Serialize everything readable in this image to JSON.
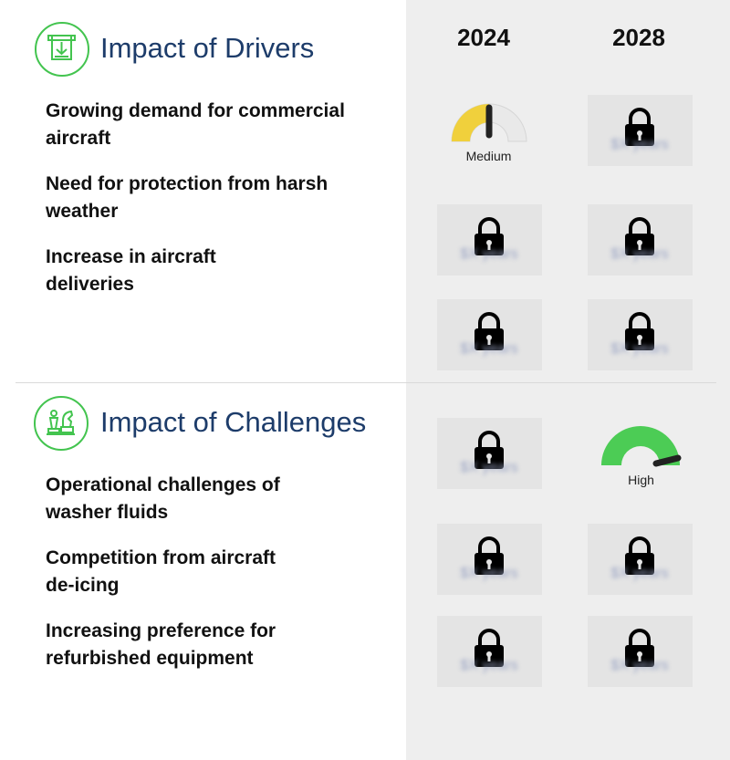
{
  "drivers": {
    "title": "Impact of Drivers",
    "icon": "bill-download-icon",
    "items": [
      {
        "line1": "Growing demand for commercial",
        "line2": "aircraft"
      },
      {
        "line1": "Need for protection from harsh",
        "line2": "weather"
      },
      {
        "line1": "Increase in aircraft",
        "line2": "deliveries"
      }
    ],
    "ratings": [
      {
        "y2024": "Medium",
        "y2028": "locked"
      },
      {
        "y2024": "locked",
        "y2028": "locked"
      },
      {
        "y2024": "locked",
        "y2028": "locked"
      }
    ]
  },
  "challenges": {
    "title": "Impact of Challenges",
    "icon": "chess-pieces-icon",
    "items": [
      {
        "line1": "Operational challenges of",
        "line2": "washer fluids"
      },
      {
        "line1": "Competition from aircraft",
        "line2": "de-icing"
      },
      {
        "line1": "Increasing preference for",
        "line2": "refurbished equipment"
      }
    ],
    "ratings": [
      {
        "y2024": "locked",
        "y2028": "High"
      },
      {
        "y2024": "locked",
        "y2028": "locked"
      },
      {
        "y2024": "locked",
        "y2028": "locked"
      }
    ]
  },
  "years": [
    "2024",
    "2028"
  ],
  "locked_text": "$X years",
  "colors": {
    "accent_green": "#43c44f",
    "title_blue": "#1d3c6a",
    "medium_yellow": "#f0d03c",
    "high_green": "#4ccc55",
    "panel_gray": "#eeeeee"
  }
}
